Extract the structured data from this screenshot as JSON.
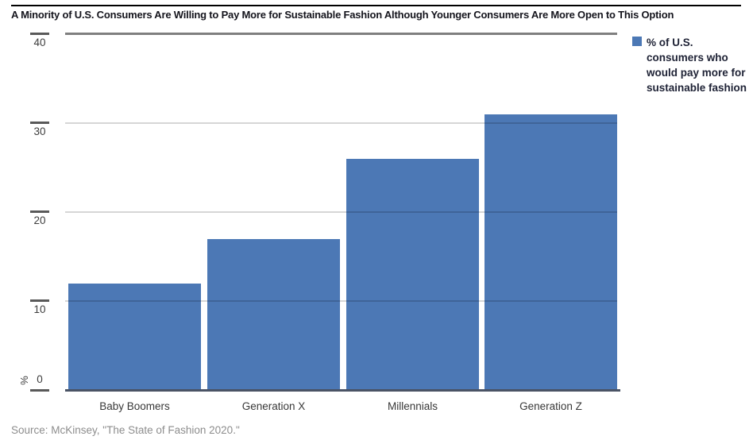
{
  "header": {
    "title": "A Minority of U.S. Consumers Are Willing to Pay More for Sustainable Fashion Although Younger Consumers Are More Open to This Option"
  },
  "chart_data": {
    "type": "bar",
    "title": "A Minority of U.S. Consumers Are Willing to Pay More for Sustainable Fashion Although Younger Consumers Are More Open to This Option",
    "categories": [
      "Baby Boomers",
      "Generation X",
      "Millennials",
      "Generation Z"
    ],
    "values": [
      12,
      17,
      26,
      31
    ],
    "series_name": "% of U.S. consumers who would pay more for sustainable fashion",
    "xlabel": "",
    "ylabel": "%",
    "ylim": [
      0,
      40
    ],
    "yticks": [
      0,
      10,
      20,
      30,
      40
    ],
    "bar_color": "#4c78b5",
    "grid": "horizontal",
    "legend_position": "top-right"
  },
  "legend": {
    "swatch_color": "#4c78b5",
    "lines": [
      "% of U.S.",
      "consumers who",
      "would pay more for",
      "sustainable fashion"
    ]
  },
  "footer": {
    "source": "Source: McKinsey, \"The State of Fashion 2020.\""
  }
}
